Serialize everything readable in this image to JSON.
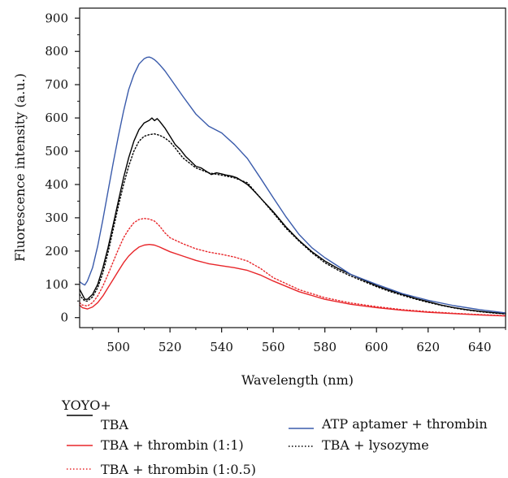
{
  "chart_data": {
    "type": "line",
    "title": "",
    "xlabel": "Wavelength (nm)",
    "ylabel": "Fluorescence intensity (a.u.)",
    "xlim": [
      485,
      650
    ],
    "ylim": [
      -30,
      930
    ],
    "x_ticks": [
      500,
      520,
      540,
      560,
      580,
      600,
      620,
      640
    ],
    "y_ticks": [
      0,
      100,
      200,
      300,
      400,
      500,
      600,
      700,
      800,
      900
    ],
    "legend_title": "YOYO+",
    "legend_position": "bottom",
    "grid": false,
    "series": [
      {
        "name": "TBA",
        "color": "#000000",
        "dash": "solid",
        "x": [
          485,
          486,
          487,
          488,
          490,
          492,
          494,
          496,
          498,
          500,
          502,
          504,
          506,
          508,
          510,
          512,
          513,
          514,
          515,
          516,
          518,
          520,
          522,
          524,
          526,
          528,
          530,
          532,
          534,
          536,
          538,
          540,
          542,
          544,
          546,
          548,
          550,
          552,
          555,
          558,
          560,
          565,
          570,
          575,
          580,
          585,
          590,
          595,
          600,
          605,
          610,
          615,
          620,
          625,
          630,
          635,
          640,
          645,
          650
        ],
        "y": [
          85,
          70,
          55,
          55,
          70,
          100,
          150,
          210,
          280,
          350,
          420,
          480,
          530,
          565,
          585,
          593,
          600,
          592,
          598,
          590,
          570,
          545,
          520,
          505,
          485,
          470,
          455,
          450,
          440,
          430,
          435,
          432,
          428,
          425,
          420,
          410,
          400,
          385,
          360,
          335,
          318,
          272,
          232,
          198,
          170,
          148,
          130,
          113,
          96,
          82,
          70,
          58,
          48,
          38,
          30,
          24,
          19,
          15,
          12
        ]
      },
      {
        "name": "TBA + thrombin (1:1)",
        "color": "#e8262a",
        "dash": "solid",
        "x": [
          485,
          486,
          488,
          490,
          492,
          494,
          496,
          498,
          500,
          502,
          504,
          506,
          508,
          510,
          512,
          514,
          516,
          518,
          520,
          525,
          530,
          535,
          540,
          545,
          550,
          555,
          560,
          570,
          580,
          590,
          600,
          610,
          620,
          630,
          640,
          650
        ],
        "y": [
          38,
          30,
          26,
          32,
          45,
          65,
          90,
          115,
          140,
          165,
          185,
          200,
          212,
          218,
          220,
          218,
          212,
          205,
          198,
          185,
          172,
          162,
          156,
          150,
          142,
          128,
          110,
          78,
          55,
          40,
          30,
          22,
          16,
          12,
          8,
          5
        ]
      },
      {
        "name": "TBA + thrombin (1:0.5)",
        "color": "#e8262a",
        "dash": "dotted",
        "x": [
          485,
          486,
          488,
          490,
          492,
          494,
          496,
          498,
          500,
          502,
          504,
          506,
          508,
          510,
          512,
          514,
          516,
          518,
          520,
          525,
          530,
          535,
          540,
          545,
          550,
          555,
          560,
          570,
          580,
          590,
          600,
          610,
          620,
          630,
          640,
          650
        ],
        "y": [
          45,
          38,
          35,
          45,
          65,
          95,
          130,
          168,
          205,
          240,
          265,
          285,
          295,
          298,
          296,
          290,
          275,
          255,
          240,
          222,
          207,
          197,
          190,
          182,
          170,
          148,
          120,
          84,
          60,
          44,
          33,
          24,
          18,
          13,
          9,
          6
        ]
      },
      {
        "name": "ATP aptamer  + thrombin",
        "color": "#3a5bab",
        "dash": "solid",
        "x": [
          485,
          486,
          487,
          488,
          490,
          492,
          494,
          496,
          498,
          500,
          502,
          504,
          506,
          508,
          510,
          511,
          512,
          513,
          514,
          515,
          516,
          518,
          520,
          525,
          530,
          535,
          540,
          545,
          550,
          555,
          560,
          565,
          570,
          575,
          580,
          590,
          600,
          610,
          620,
          630,
          640,
          650
        ],
        "y": [
          108,
          102,
          98,
          110,
          150,
          215,
          295,
          380,
          465,
          545,
          620,
          685,
          730,
          762,
          778,
          782,
          783,
          780,
          775,
          768,
          760,
          742,
          720,
          665,
          612,
          575,
          555,
          520,
          478,
          420,
          360,
          302,
          250,
          210,
          180,
          130,
          100,
          72,
          52,
          36,
          24,
          14
        ]
      },
      {
        "name": "TBA + lysozyme",
        "color": "#000000",
        "dash": "dotted",
        "x": [
          485,
          486,
          487,
          488,
          490,
          492,
          494,
          496,
          498,
          500,
          502,
          504,
          506,
          508,
          510,
          512,
          514,
          516,
          518,
          520,
          522,
          525,
          530,
          535,
          540,
          545,
          550,
          555,
          560,
          565,
          570,
          575,
          580,
          585,
          590,
          595,
          600,
          605,
          610,
          615,
          620,
          625,
          630,
          635,
          640,
          645,
          650
        ],
        "y": [
          70,
          58,
          50,
          50,
          62,
          90,
          135,
          195,
          265,
          335,
          400,
          455,
          500,
          530,
          545,
          550,
          552,
          548,
          540,
          528,
          510,
          480,
          450,
          435,
          428,
          420,
          405,
          360,
          315,
          268,
          230,
          195,
          165,
          143,
          125,
          109,
          93,
          79,
          67,
          56,
          46,
          37,
          29,
          23,
          18,
          14,
          11
        ]
      }
    ]
  }
}
